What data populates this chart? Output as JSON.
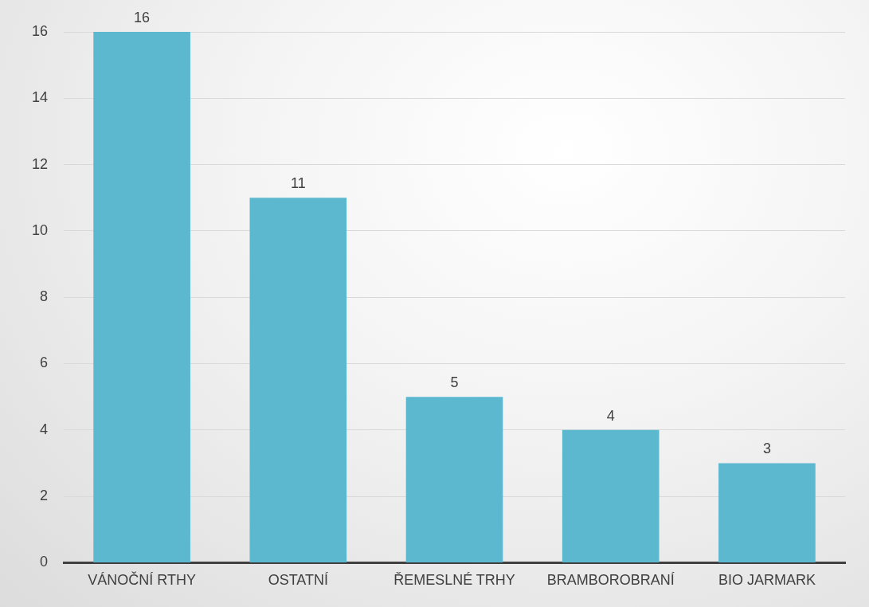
{
  "chart_data": {
    "type": "bar",
    "categories": [
      "VÁNOČNÍ RTHY",
      "OSTATNÍ",
      "ŘEMESLNÉ TRHY",
      "BRAMBOROBRANÍ",
      "BIO JARMARK"
    ],
    "values": [
      16,
      11,
      5,
      4,
      3
    ],
    "color": "#5bb8cf",
    "ylim": [
      0,
      16
    ],
    "yticks": [
      0,
      2,
      4,
      6,
      8,
      10,
      12,
      14,
      16
    ],
    "grid": "y",
    "data_labels": true
  }
}
